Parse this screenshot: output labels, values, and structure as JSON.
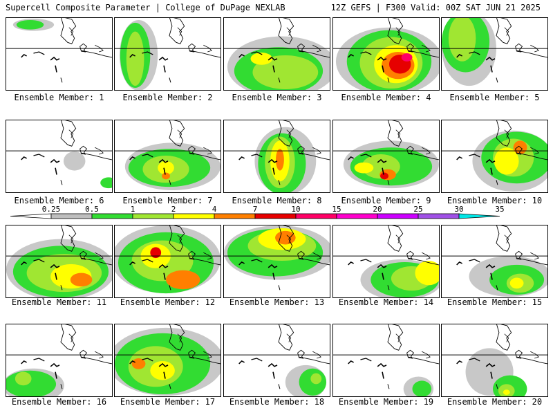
{
  "header": {
    "left": "Supercell Composite Parameter | College of DuPage NEXLAB",
    "right": "12Z GEFS | F300 Valid: 00Z SAT JUN 21 2025"
  },
  "label_prefix": "Ensemble Member: ",
  "members": [
    1,
    2,
    3,
    4,
    5,
    6,
    7,
    8,
    9,
    10,
    11,
    12,
    13,
    14,
    15,
    16,
    17,
    18,
    19,
    20
  ],
  "colorbar": {
    "ticks": [
      "0.25",
      "0.5",
      "1",
      "2",
      "4",
      "7",
      "10",
      "15",
      "20",
      "25",
      "30",
      "35"
    ],
    "colors": [
      "#ffffff",
      "#bebebe",
      "#32dc32",
      "#a0e632",
      "#ffff00",
      "#ff7f00",
      "#e60000",
      "#ff0066",
      "#ff00cc",
      "#cc00ff",
      "#a050e6",
      "#00e6e6"
    ]
  },
  "field_colors": {
    "l1": "#c8c8c8",
    "l2": "#32dc32",
    "l3": "#a0e632",
    "l4": "#ffff00",
    "l5": "#ff7f00",
    "l6": "#e60000",
    "l7": "#ff0066"
  },
  "member_fields": [
    [
      [
        40,
        10,
        30,
        9,
        1
      ],
      [
        35,
        10,
        20,
        7,
        2
      ]
    ],
    [
      [
        35,
        55,
        28,
        52,
        1
      ],
      [
        30,
        55,
        22,
        48,
        2
      ],
      [
        30,
        60,
        13,
        40,
        3
      ]
    ],
    [
      [
        85,
        72,
        80,
        45,
        1
      ],
      [
        80,
        78,
        65,
        35,
        2
      ],
      [
        90,
        80,
        48,
        25,
        3
      ],
      [
        55,
        60,
        16,
        9,
        4
      ]
    ],
    [
      [
        82,
        64,
        78,
        50,
        1
      ],
      [
        82,
        64,
        62,
        46,
        2
      ],
      [
        85,
        66,
        46,
        38,
        3
      ],
      [
        92,
        68,
        32,
        28,
        4
      ],
      [
        95,
        70,
        24,
        20,
        5
      ],
      [
        98,
        68,
        16,
        14,
        6
      ],
      [
        108,
        58,
        8,
        6,
        7
      ]
    ],
    [
      [
        40,
        45,
        40,
        55,
        1
      ],
      [
        35,
        35,
        35,
        45,
        2
      ],
      [
        30,
        30,
        20,
        34,
        3
      ]
    ],
    [
      [
        100,
        60,
        16,
        14,
        1
      ],
      [
        150,
        92,
        12,
        8,
        2
      ]
    ],
    [
      [
        85,
        68,
        70,
        35,
        1
      ],
      [
        80,
        70,
        60,
        28,
        2
      ],
      [
        75,
        72,
        34,
        20,
        3
      ],
      [
        75,
        70,
        12,
        10,
        4
      ],
      [
        75,
        82,
        6,
        5,
        5
      ]
    ],
    [
      [
        90,
        60,
        45,
        50,
        1
      ],
      [
        85,
        64,
        35,
        45,
        2
      ],
      [
        82,
        62,
        22,
        38,
        3
      ],
      [
        82,
        60,
        14,
        30,
        4
      ],
      [
        82,
        58,
        6,
        16,
        5
      ]
    ],
    [
      [
        85,
        65,
        70,
        35,
        1
      ],
      [
        85,
        68,
        60,
        28,
        2
      ],
      [
        70,
        68,
        28,
        18,
        3
      ],
      [
        45,
        70,
        14,
        8,
        4
      ],
      [
        80,
        80,
        12,
        8,
        5
      ],
      [
        75,
        82,
        6,
        5,
        6
      ]
    ],
    [
      [
        105,
        60,
        60,
        45,
        1
      ],
      [
        110,
        55,
        52,
        38,
        2
      ],
      [
        105,
        55,
        30,
        28,
        3
      ],
      [
        95,
        60,
        18,
        20,
        4
      ],
      [
        115,
        40,
        10,
        10,
        5
      ]
    ],
    [
      [
        80,
        65,
        80,
        45,
        1
      ],
      [
        80,
        68,
        70,
        38,
        2
      ],
      [
        85,
        70,
        55,
        28,
        3
      ],
      [
        95,
        75,
        30,
        18,
        4
      ],
      [
        110,
        80,
        16,
        10,
        5
      ]
    ],
    [
      [
        75,
        50,
        80,
        50,
        1
      ],
      [
        75,
        55,
        70,
        45,
        2
      ],
      [
        70,
        52,
        45,
        30,
        3
      ],
      [
        60,
        45,
        22,
        18,
        4
      ],
      [
        100,
        80,
        25,
        14,
        5
      ],
      [
        60,
        40,
        8,
        8,
        6
      ]
    ],
    [
      [
        80,
        40,
        80,
        40,
        1
      ],
      [
        75,
        40,
        70,
        35,
        2
      ],
      [
        85,
        30,
        50,
        22,
        3
      ],
      [
        85,
        20,
        35,
        16,
        4
      ],
      [
        90,
        18,
        15,
        10,
        5
      ]
    ],
    [
      [
        100,
        80,
        60,
        30,
        1
      ],
      [
        105,
        80,
        50,
        26,
        2
      ],
      [
        115,
        78,
        30,
        18,
        3
      ],
      [
        140,
        70,
        20,
        18,
        4
      ]
    ],
    [
      [
        100,
        75,
        60,
        30,
        1
      ],
      [
        110,
        80,
        40,
        22,
        2
      ],
      [
        115,
        85,
        20,
        14,
        3
      ],
      [
        110,
        85,
        10,
        8,
        4
      ]
    ],
    [
      [
        40,
        90,
        45,
        25,
        1
      ],
      [
        35,
        88,
        38,
        20,
        2
      ],
      [
        25,
        80,
        12,
        10,
        3
      ]
    ],
    [
      [
        75,
        55,
        85,
        50,
        1
      ],
      [
        70,
        58,
        70,
        45,
        2
      ],
      [
        60,
        62,
        40,
        30,
        3
      ],
      [
        70,
        68,
        18,
        14,
        4
      ],
      [
        35,
        58,
        10,
        8,
        5
      ]
    ],
    [
      [
        120,
        85,
        30,
        25,
        1
      ],
      [
        130,
        85,
        20,
        20,
        2
      ],
      [
        135,
        80,
        8,
        8,
        3
      ]
    ],
    [
      [
        125,
        95,
        22,
        18,
        1
      ],
      [
        130,
        95,
        14,
        12,
        2
      ]
    ],
    [
      [
        70,
        70,
        35,
        35,
        1
      ],
      [
        100,
        95,
        25,
        20,
        2
      ],
      [
        95,
        98,
        12,
        10,
        3
      ],
      [
        95,
        100,
        5,
        4,
        4
      ]
    ]
  ]
}
